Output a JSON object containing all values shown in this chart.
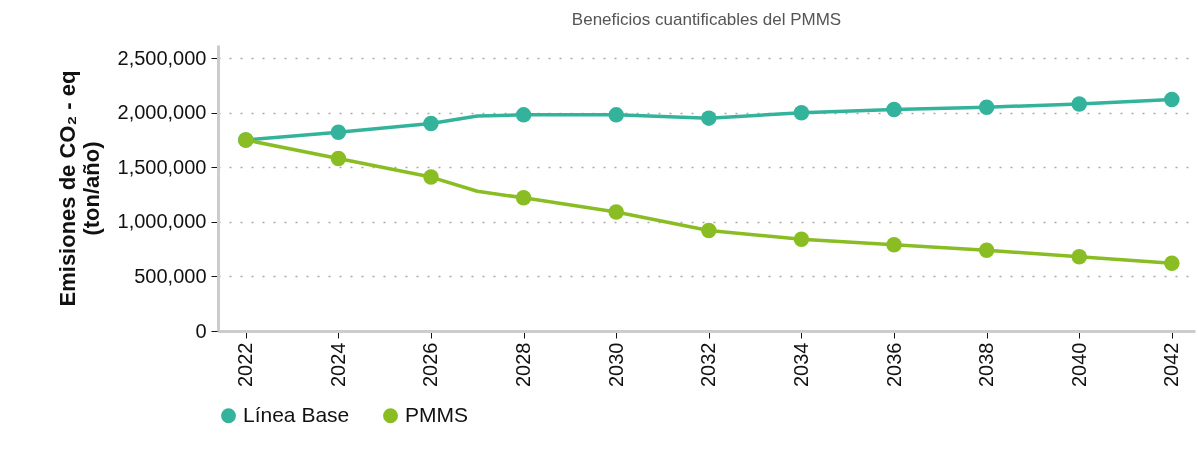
{
  "chart_data": {
    "type": "line",
    "title": "Beneficios cuantificables del PMMS",
    "ylabel": "Emisiones de CO₂ - eq\n(ton/año)",
    "x": [
      2022,
      2024,
      2026,
      2027,
      2028,
      2030,
      2032,
      2034,
      2036,
      2038,
      2040,
      2042
    ],
    "series": [
      {
        "name": "Línea Base",
        "color": "#33b39b",
        "values": [
          1750000,
          1820000,
          1900000,
          1970000,
          1980000,
          1980000,
          1950000,
          2000000,
          2030000,
          2050000,
          2080000,
          2120000
        ]
      },
      {
        "name": "PMMS",
        "color": "#8abd24",
        "values": [
          1750000,
          1580000,
          1410000,
          1280000,
          1220000,
          1090000,
          920000,
          840000,
          790000,
          740000,
          680000,
          620000
        ]
      }
    ],
    "xlim": [
      2021.4,
      2042.5
    ],
    "xticks": [
      2022,
      2024,
      2026,
      2028,
      2030,
      2032,
      2034,
      2036,
      2038,
      2040,
      2042
    ],
    "ylim": [
      0,
      2620000
    ],
    "yticks": [
      0,
      {
        "value": 500000,
        "label": "500,000"
      },
      {
        "value": 1000000,
        "label": "1,000,000"
      },
      {
        "value": 1500000,
        "label": "1,500,000"
      },
      {
        "value": 2000000,
        "label": "2,000,000"
      },
      {
        "value": 2500000,
        "label": "2,500,000"
      }
    ],
    "grid": "y",
    "legend": "bottom",
    "marker": "circle",
    "line_style": "solid"
  }
}
